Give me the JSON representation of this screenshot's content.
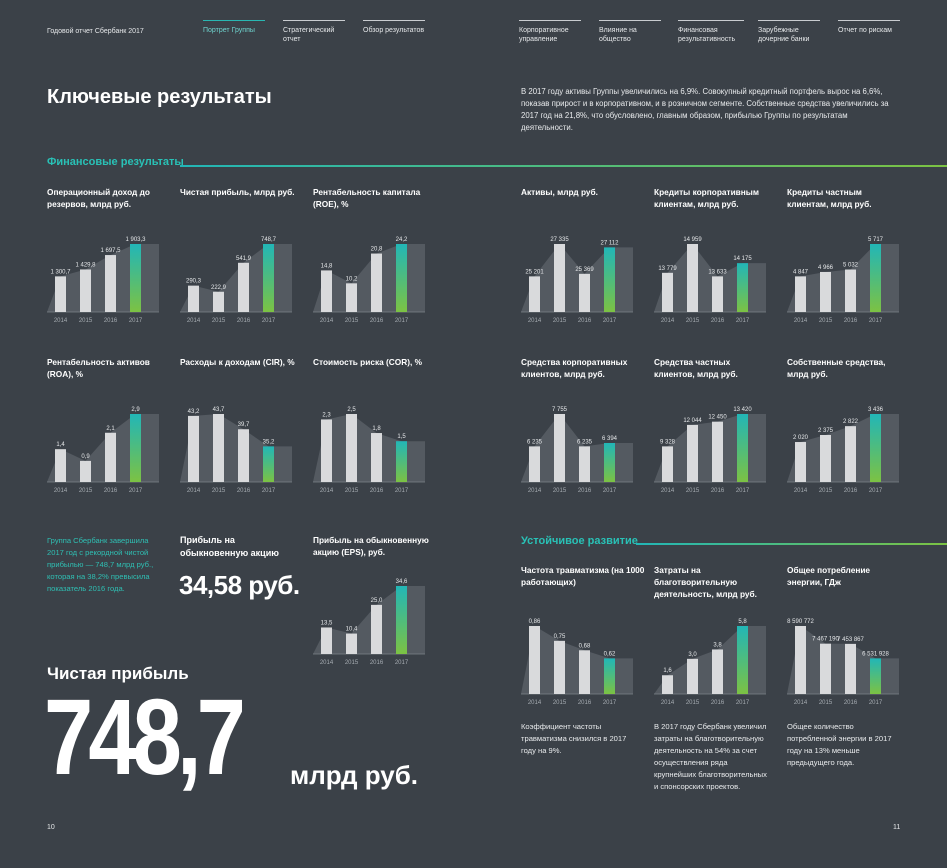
{
  "header": {
    "report_title": "Годовой отчет Сбербанк 2017",
    "nav_left": [
      {
        "label": "Портрет Группы",
        "active": true
      },
      {
        "label": "Стратегический отчет",
        "active": false
      },
      {
        "label": "Обзор результатов",
        "active": false
      }
    ],
    "nav_right": [
      {
        "label": "Корпоративное управление"
      },
      {
        "label": "Влияние на общество"
      },
      {
        "label": "Финансовая результативность"
      },
      {
        "label": "Зарубежные дочерние банки"
      },
      {
        "label": "Отчет по рискам"
      }
    ]
  },
  "page_title": "Ключевые результаты",
  "intro_text": "В 2017 году активы Группы увеличились на 6,9%. Совокупный кредитный портфель вырос на 6,6%, показав прирост и в корпоративном, и в розничном сегменте. Собственные средства увеличились за 2017 год на 21,8%, что обусловлено, главным образом, прибылью Группы по результатам деятельности.",
  "sections": {
    "financial": "Финансовые результаты",
    "sustainable": "Устойчивое развитие"
  },
  "side_note": "Группа Сбербанк завершила 2017 год с рекордной чистой прибылью — 748,7 млрд руб., которая на 38,2% превысила показатель 2016 года.",
  "eps_block": {
    "label": "Прибыль на обыкновенную акцию",
    "value": "34,58 руб."
  },
  "net_profit": {
    "label": "Чистая прибыль",
    "value": "748,7",
    "unit": "млрд руб."
  },
  "page_numbers": {
    "left": "10",
    "right": "11"
  },
  "colors": {
    "background": "#3b4148",
    "bar_grey": "#d9dadc",
    "area_grey": "#545a61",
    "accent_teal": "#22b6b7",
    "accent_green": "#7cc243"
  },
  "chart_data": [
    {
      "type": "bar",
      "title": "Операционный доход до резервов, млрд руб.",
      "categories": [
        "2014",
        "2015",
        "2016",
        "2017"
      ],
      "values": [
        1300.7,
        1429.8,
        1697.5,
        1903.3
      ],
      "labels": [
        "1 300,7",
        "1 429,8",
        "1 697,5",
        "1 903,3"
      ]
    },
    {
      "type": "bar",
      "title": "Чистая прибыль, млрд руб.",
      "categories": [
        "2014",
        "2015",
        "2016",
        "2017"
      ],
      "values": [
        290.3,
        222.9,
        541.9,
        748.7
      ],
      "labels": [
        "290,3",
        "222,9",
        "541,9",
        "748,7"
      ]
    },
    {
      "type": "bar",
      "title": "Рентабельность капитала (ROE), %",
      "categories": [
        "2014",
        "2015",
        "2016",
        "2017"
      ],
      "values": [
        14.8,
        10.2,
        20.8,
        24.2
      ],
      "labels": [
        "14,8",
        "10,2",
        "20,8",
        "24,2"
      ]
    },
    {
      "type": "bar",
      "title": "Активы, млрд руб.",
      "categories": [
        "2014",
        "2015",
        "2016",
        "2017"
      ],
      "values": [
        25201,
        27335,
        25369,
        27112
      ],
      "labels": [
        "25 201",
        "27 335",
        "25 369",
        "27 112"
      ]
    },
    {
      "type": "bar",
      "title": "Кредиты корпоративным клиентам, млрд руб.",
      "categories": [
        "2014",
        "2015",
        "2016",
        "2017"
      ],
      "values": [
        13779,
        14959,
        13633,
        14175
      ],
      "labels": [
        "13 779",
        "14 959",
        "13 633",
        "14 175"
      ]
    },
    {
      "type": "bar",
      "title": "Кредиты частным клиентам, млрд руб.",
      "categories": [
        "2014",
        "2015",
        "2016",
        "2017"
      ],
      "values": [
        4847,
        4966,
        5032,
        5717
      ],
      "labels": [
        "4 847",
        "4 966",
        "5 032",
        "5 717"
      ]
    },
    {
      "type": "bar",
      "title": "Рентабельность активов (ROA), %",
      "categories": [
        "2014",
        "2015",
        "2016",
        "2017"
      ],
      "values": [
        1.4,
        0.9,
        2.1,
        2.9
      ],
      "labels": [
        "1,4",
        "0,9",
        "2,1",
        "2,9"
      ]
    },
    {
      "type": "bar",
      "title": "Расходы к доходам (CIR), %",
      "categories": [
        "2014",
        "2015",
        "2016",
        "2017"
      ],
      "values": [
        43.2,
        43.7,
        39.7,
        35.2
      ],
      "labels": [
        "43,2",
        "43,7",
        "39,7",
        "35,2"
      ]
    },
    {
      "type": "bar",
      "title": "Стоимость риска (COR), %",
      "categories": [
        "2014",
        "2015",
        "2016",
        "2017"
      ],
      "values": [
        2.3,
        2.5,
        1.8,
        1.5
      ],
      "labels": [
        "2,3",
        "2,5",
        "1,8",
        "1,5"
      ]
    },
    {
      "type": "bar",
      "title": "Средства корпоративных клиентов, млрд руб.",
      "categories": [
        "2014",
        "2015",
        "2016",
        "2017"
      ],
      "values": [
        6235,
        7755,
        6235,
        6394
      ],
      "labels": [
        "6 235",
        "7 755",
        "6 235",
        "6 394"
      ]
    },
    {
      "type": "bar",
      "title": "Средства частных клиентов, млрд руб.",
      "categories": [
        "2014",
        "2015",
        "2016",
        "2017"
      ],
      "values": [
        9328,
        12044,
        12450,
        13420
      ],
      "labels": [
        "9 328",
        "12 044",
        "12 450",
        "13 420"
      ]
    },
    {
      "type": "bar",
      "title": "Собственные средства, млрд руб.",
      "categories": [
        "2014",
        "2015",
        "2016",
        "2017"
      ],
      "values": [
        2020,
        2375,
        2822,
        3436
      ],
      "labels": [
        "2 020",
        "2 375",
        "2 822",
        "3 436"
      ]
    },
    {
      "type": "bar",
      "title": "Прибыль на обыкновенную акцию (EPS), руб.",
      "categories": [
        "2014",
        "2015",
        "2016",
        "2017"
      ],
      "values": [
        13.5,
        10.4,
        25.0,
        34.6
      ],
      "labels": [
        "13,5",
        "10,4",
        "25,0",
        "34,6"
      ]
    },
    {
      "type": "bar",
      "title": "Частота травматизма (на 1000 работающих)",
      "categories": [
        "2014",
        "2015",
        "2016",
        "2017"
      ],
      "values": [
        0.86,
        0.75,
        0.68,
        0.62
      ],
      "labels": [
        "0,86",
        "0,75",
        "0,68",
        "0,62"
      ]
    },
    {
      "type": "bar",
      "title": "Затраты на благотворительную деятельность, млрд руб.",
      "categories": [
        "2014",
        "2015",
        "2016",
        "2017"
      ],
      "values": [
        1.6,
        3.0,
        3.8,
        5.8
      ],
      "labels": [
        "1,6",
        "3,0",
        "3,8",
        "5,8"
      ]
    },
    {
      "type": "bar",
      "title": "Общее потребление энергии, ГДж",
      "categories": [
        "2014",
        "2015",
        "2016",
        "2017"
      ],
      "values": [
        8590772,
        7467190,
        7453867,
        6531928
      ],
      "labels": [
        "8 590 772",
        "7 467 190",
        "7 453 867",
        "6 531 928"
      ]
    }
  ],
  "sustain_notes": [
    "Коэффициент частоты травматизма снизился в 2017 году на 9%.",
    "В 2017 году Сбербанк увеличил затраты на благотворительную деятельность на 54% за счет осуществления ряда крупнейших благотворительных и спонсорских проектов.",
    "Общее количество потребленной энергии в 2017 году на 13% меньше предыдущего года."
  ]
}
